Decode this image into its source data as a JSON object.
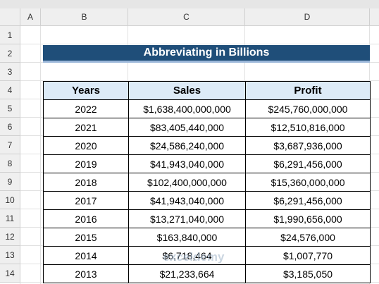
{
  "columns": [
    "A",
    "B",
    "C",
    "D"
  ],
  "rows": [
    1,
    2,
    3,
    4,
    5,
    6,
    7,
    8,
    9,
    10,
    11,
    12,
    13,
    14
  ],
  "title": "Abbreviating in Billions",
  "table": {
    "header": [
      "Years",
      "Sales",
      "Profit"
    ],
    "rows": [
      [
        "2022",
        "$1,638,400,000,000",
        "$245,760,000,000"
      ],
      [
        "2021",
        "$83,405,440,000",
        "$12,510,816,000"
      ],
      [
        "2020",
        "$24,586,240,000",
        "$3,687,936,000"
      ],
      [
        "2019",
        "$41,943,040,000",
        "$6,291,456,000"
      ],
      [
        "2018",
        "$102,400,000,000",
        "$15,360,000,000"
      ],
      [
        "2017",
        "$41,943,040,000",
        "$6,291,456,000"
      ],
      [
        "2016",
        "$13,271,040,000",
        "$1,990,656,000"
      ],
      [
        "2015",
        "$163,840,000",
        "$24,576,000"
      ],
      [
        "2014",
        "$6,718,464",
        "$1,007,770"
      ],
      [
        "2013",
        "$21,233,664",
        "$3,185,050"
      ]
    ]
  },
  "watermark": "exceldemy"
}
